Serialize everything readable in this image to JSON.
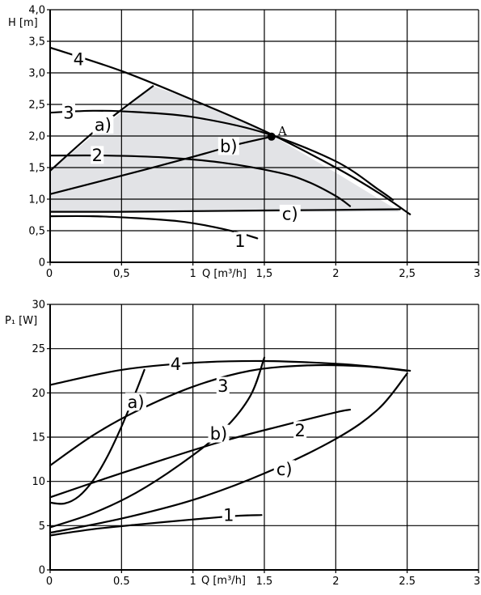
{
  "chart_data": [
    {
      "type": "line",
      "y_axis_label": "H [m]",
      "x_axis_label": "Q [m³/h]",
      "x_ticks": [
        "0",
        "0,5",
        "1",
        "1,5",
        "2",
        "2,5",
        "3"
      ],
      "y_ticks": [
        "0",
        "0,5",
        "1,0",
        "1,5",
        "2,0",
        "2,5",
        "3,0",
        "3,5",
        "4,0"
      ],
      "xlim": [
        0,
        3
      ],
      "ylim": [
        0,
        4
      ],
      "grid": true,
      "shaded_region": [
        [
          0,
          1.45
        ],
        [
          0.72,
          2.79
        ],
        [
          1.0,
          2.57
        ],
        [
          1.5,
          2.08
        ],
        [
          2.0,
          1.42
        ],
        [
          2.45,
          0.8
        ],
        [
          0,
          0.8
        ]
      ],
      "point": {
        "label": "A",
        "x": 1.55,
        "y": 1.99
      },
      "series": [
        {
          "name": "1",
          "x": [
            0,
            0.3,
            0.6,
            0.9,
            1.1,
            1.3,
            1.45
          ],
          "y": [
            0.73,
            0.73,
            0.7,
            0.65,
            0.58,
            0.48,
            0.38
          ]
        },
        {
          "name": "2",
          "x": [
            0,
            0.4,
            0.8,
            1.2,
            1.6,
            1.8,
            2.0,
            2.1
          ],
          "y": [
            1.69,
            1.69,
            1.66,
            1.58,
            1.42,
            1.28,
            1.05,
            0.89
          ]
        },
        {
          "name": "3",
          "x": [
            0,
            0.3,
            0.6,
            1.0,
            1.5,
            2.0,
            2.3,
            2.4
          ],
          "y": [
            2.37,
            2.4,
            2.38,
            2.3,
            2.05,
            1.6,
            1.15,
            0.99
          ]
        },
        {
          "name": "4",
          "x": [
            0,
            0.5,
            1.0,
            1.5,
            2.0,
            2.3,
            2.52
          ],
          "y": [
            3.4,
            3.03,
            2.57,
            2.08,
            1.5,
            1.1,
            0.76
          ]
        },
        {
          "name": "a)",
          "x": [
            0,
            0.35,
            0.72
          ],
          "y": [
            1.45,
            2.15,
            2.79
          ]
        },
        {
          "name": "b)",
          "x": [
            0,
            0.5,
            1.0,
            1.3,
            1.55
          ],
          "y": [
            1.08,
            1.37,
            1.67,
            1.86,
            1.99
          ]
        },
        {
          "name": "c)",
          "x": [
            0,
            0.5,
            1.0,
            1.5,
            2.0,
            2.45
          ],
          "y": [
            0.8,
            0.8,
            0.81,
            0.82,
            0.83,
            0.84
          ]
        }
      ],
      "curve_labels": [
        {
          "text": "4",
          "x": 0.2,
          "y": 3.22
        },
        {
          "text": "3",
          "x": 0.13,
          "y": 2.37
        },
        {
          "text": "a)",
          "x": 0.37,
          "y": 2.18
        },
        {
          "text": "2",
          "x": 0.33,
          "y": 1.7
        },
        {
          "text": "b)",
          "x": 1.25,
          "y": 1.84
        },
        {
          "text": "c)",
          "x": 1.68,
          "y": 0.77
        },
        {
          "text": "1",
          "x": 1.33,
          "y": 0.34
        }
      ]
    },
    {
      "type": "line",
      "y_axis_label": "P₁ [W]",
      "x_axis_label": "Q [m³/h]",
      "x_ticks": [
        "0",
        "0.5",
        "1",
        "1.5",
        "2",
        "2.5",
        "3"
      ],
      "y_ticks": [
        "0",
        "5",
        "10",
        "15",
        "20",
        "25",
        "30"
      ],
      "xlim": [
        0,
        3
      ],
      "ylim": [
        0,
        30
      ],
      "grid": true,
      "series": [
        {
          "name": "1",
          "x": [
            0,
            0.3,
            0.6,
            1.0,
            1.3,
            1.48
          ],
          "y": [
            3.9,
            4.6,
            5.1,
            5.7,
            6.1,
            6.2
          ]
        },
        {
          "name": "2",
          "x": [
            0,
            0.4,
            0.8,
            1.2,
            1.6,
            2.0,
            2.1
          ],
          "y": [
            8.2,
            10.4,
            12.5,
            14.5,
            16.2,
            17.8,
            18.1
          ]
        },
        {
          "name": "3",
          "x": [
            0,
            0.3,
            0.6,
            1.0,
            1.4,
            1.8,
            2.2,
            2.5
          ],
          "y": [
            11.8,
            15.2,
            17.9,
            20.7,
            22.5,
            23.1,
            23.0,
            22.5
          ]
        },
        {
          "name": "4",
          "x": [
            0,
            0.5,
            1.0,
            1.5,
            2.0,
            2.3,
            2.52
          ],
          "y": [
            20.9,
            22.6,
            23.4,
            23.6,
            23.3,
            22.9,
            22.5
          ]
        },
        {
          "name": "a)",
          "x": [
            0,
            0.1,
            0.2,
            0.3,
            0.4,
            0.5,
            0.6,
            0.66
          ],
          "y": [
            7.6,
            7.5,
            8.3,
            10.1,
            12.8,
            16.2,
            20.1,
            22.6
          ]
        },
        {
          "name": "b)",
          "x": [
            0,
            0.3,
            0.6,
            0.9,
            1.2,
            1.4,
            1.5
          ],
          "y": [
            4.8,
            6.4,
            8.7,
            11.8,
            15.6,
            19.6,
            24.0
          ]
        },
        {
          "name": "c)",
          "x": [
            0,
            0.5,
            1.0,
            1.5,
            2.0,
            2.3,
            2.5
          ],
          "y": [
            4.2,
            5.8,
            7.9,
            10.9,
            14.8,
            18.2,
            22.2
          ]
        }
      ],
      "curve_labels": [
        {
          "text": "4",
          "x": 0.88,
          "y": 23.3
        },
        {
          "text": "3",
          "x": 1.21,
          "y": 20.8
        },
        {
          "text": "a)",
          "x": 0.6,
          "y": 19.0
        },
        {
          "text": "b)",
          "x": 1.18,
          "y": 15.4
        },
        {
          "text": "2",
          "x": 1.75,
          "y": 15.8
        },
        {
          "text": "c)",
          "x": 1.64,
          "y": 11.4
        },
        {
          "text": "1",
          "x": 1.25,
          "y": 6.2
        }
      ]
    }
  ]
}
